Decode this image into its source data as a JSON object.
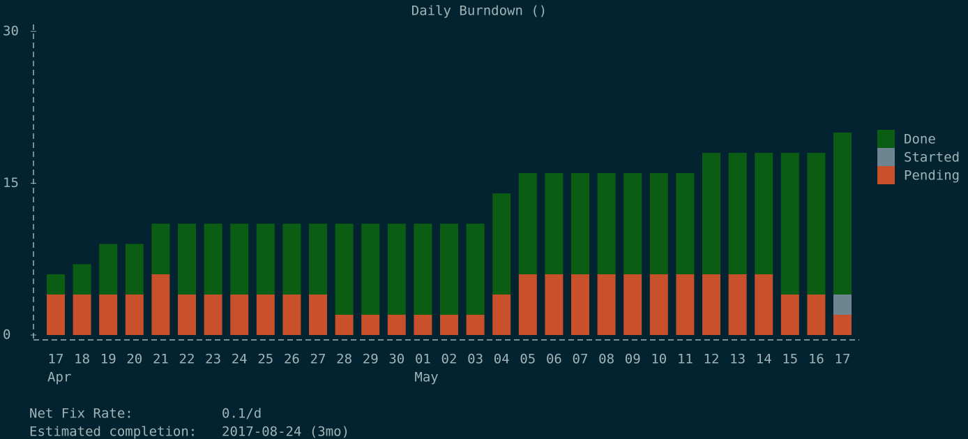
{
  "chart_data": {
    "type": "bar",
    "stacked": true,
    "title": "Daily Burndown ()",
    "categories": [
      "17",
      "18",
      "19",
      "20",
      "21",
      "22",
      "23",
      "24",
      "25",
      "26",
      "27",
      "28",
      "29",
      "30",
      "01",
      "02",
      "03",
      "04",
      "05",
      "06",
      "07",
      "08",
      "09",
      "10",
      "11",
      "12",
      "13",
      "14",
      "15",
      "16",
      "17"
    ],
    "month_labels": [
      "Apr",
      null,
      null,
      null,
      null,
      null,
      null,
      null,
      null,
      null,
      null,
      null,
      null,
      null,
      "May",
      null,
      null,
      null,
      null,
      null,
      null,
      null,
      null,
      null,
      null,
      null,
      null,
      null,
      null,
      null,
      null
    ],
    "series": [
      {
        "name": "Pending",
        "color": "#c8502b",
        "values": [
          4,
          4,
          4,
          4,
          6,
          4,
          4,
          4,
          4,
          4,
          4,
          2,
          2,
          2,
          2,
          2,
          2,
          4,
          6,
          6,
          6,
          6,
          6,
          6,
          6,
          6,
          6,
          6,
          4,
          4,
          2
        ]
      },
      {
        "name": "Started",
        "color": "#6c8591",
        "values": [
          0,
          0,
          0,
          0,
          0,
          0,
          0,
          0,
          0,
          0,
          0,
          0,
          0,
          0,
          0,
          0,
          0,
          0,
          0,
          0,
          0,
          0,
          0,
          0,
          0,
          0,
          0,
          0,
          0,
          0,
          2
        ]
      },
      {
        "name": "Done",
        "color": "#0b5d13",
        "values": [
          2,
          3,
          5,
          5,
          5,
          7,
          7,
          7,
          7,
          7,
          7,
          9,
          9,
          9,
          9,
          9,
          9,
          10,
          10,
          10,
          10,
          10,
          10,
          10,
          10,
          12,
          12,
          12,
          14,
          14,
          16
        ]
      }
    ],
    "ylim": [
      0,
      30
    ],
    "yticks": [
      0,
      15,
      30
    ],
    "legend": "right"
  },
  "footer": {
    "rows": [
      [
        "Net Fix Rate:",
        "0.1/d"
      ],
      [
        "Estimated completion:",
        "2017-08-24 (3mo)"
      ]
    ]
  }
}
